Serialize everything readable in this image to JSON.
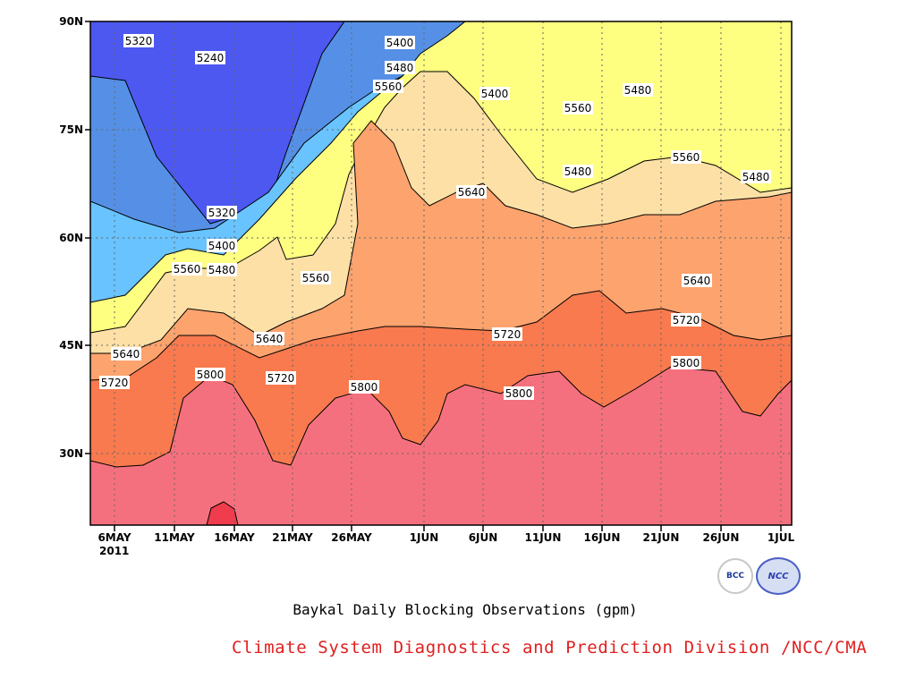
{
  "chart_data": {
    "type": "filled-contour",
    "title": "Baykal Daily Blocking Observations (gpm)",
    "x_ticks": [
      "6MAY\n2011",
      "11MAY",
      "16MAY",
      "21MAY",
      "26MAY",
      "1JUN",
      "6JUN",
      "11JUN",
      "16JUN",
      "21JUN",
      "26JUN",
      "1JUL"
    ],
    "y_ticks": [
      "90N",
      "75N",
      "60N",
      "45N",
      "30N"
    ],
    "xlim": [
      "2011-05-05",
      "2011-07-01"
    ],
    "ylim": [
      20,
      90
    ],
    "grid": true,
    "levels": [
      5240,
      5320,
      5400,
      5480,
      5560,
      5640,
      5720,
      5800,
      5880
    ],
    "level_colors": {
      "5880": "#f03c4c",
      "5800": "#f5707e",
      "5720": "#f87a4e",
      "5640": "#fca36e",
      "5560": "#fde0a6",
      "5480": "#fefe80",
      "5400": "#68c3fe",
      "5320": "#5590e6",
      "5240": "#4c58f0",
      "below": "#1414e6"
    },
    "contour_labels": [
      {
        "text": "5320"
      },
      {
        "text": "5240"
      },
      {
        "text": "5400"
      },
      {
        "text": "5480"
      },
      {
        "text": "5560"
      },
      {
        "text": "5400"
      },
      {
        "text": "5560"
      },
      {
        "text": "5480"
      },
      {
        "text": "5480"
      },
      {
        "text": "5560"
      },
      {
        "text": "5480"
      },
      {
        "text": "5640"
      },
      {
        "text": "5320"
      },
      {
        "text": "5400"
      },
      {
        "text": "5560"
      },
      {
        "text": "5480"
      },
      {
        "text": "5560"
      },
      {
        "text": "5640"
      },
      {
        "text": "5640"
      },
      {
        "text": "5640"
      },
      {
        "text": "5720"
      },
      {
        "text": "5720"
      },
      {
        "text": "5720"
      },
      {
        "text": "5720"
      },
      {
        "text": "5800"
      },
      {
        "text": "5800"
      },
      {
        "text": "5800"
      },
      {
        "text": "5800"
      }
    ]
  },
  "footer": {
    "title": "Baykal Daily Blocking Observations (gpm)",
    "credit": "Climate System Diagnostics and Prediction Division /NCC/CMA",
    "credit_color": "#e02020"
  },
  "logos": {
    "left": "BCC",
    "right": "NCC"
  }
}
